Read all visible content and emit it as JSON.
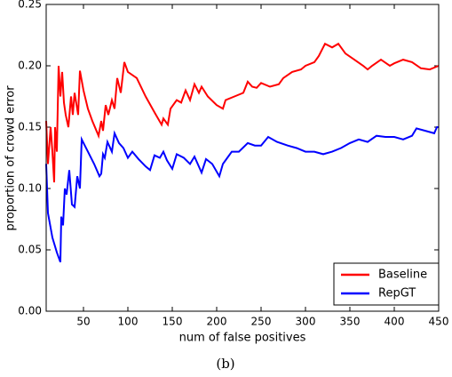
{
  "chart_data": {
    "type": "line",
    "title": "(b)",
    "xlabel": "num of false positives",
    "ylabel": "proportion of crowd error",
    "xlim": [
      8,
      450
    ],
    "ylim": [
      0,
      0.25
    ],
    "xticks": [
      50,
      100,
      150,
      200,
      250,
      300,
      350,
      400,
      450
    ],
    "yticks": [
      {
        "value": 0,
        "label": "0.00"
      },
      0.05,
      {
        "value": 0.1,
        "label": "0.10"
      },
      0.15,
      {
        "value": 0.2,
        "label": "0.20"
      },
      0.25
    ],
    "legend": "lower right",
    "series": [
      {
        "name": "Baseline",
        "color": "#ff0000",
        "x": [
          8,
          10,
          13,
          15,
          17,
          18,
          20,
          22,
          24,
          26,
          28,
          30,
          33,
          36,
          38,
          40,
          44,
          46,
          50,
          55,
          60,
          67,
          70,
          72,
          75,
          78,
          82,
          85,
          88,
          92,
          96,
          100,
          110,
          120,
          130,
          138,
          140,
          145,
          148,
          155,
          160,
          165,
          170,
          175,
          180,
          183,
          190,
          200,
          207,
          210,
          220,
          230,
          235,
          240,
          245,
          250,
          260,
          270,
          275,
          285,
          295,
          300,
          310,
          315,
          322,
          330,
          337,
          345,
          355,
          365,
          370,
          375,
          385,
          395,
          400,
          410,
          420,
          430,
          440,
          450
        ],
        "values": [
          0.155,
          0.12,
          0.15,
          0.13,
          0.105,
          0.15,
          0.13,
          0.2,
          0.175,
          0.195,
          0.17,
          0.16,
          0.15,
          0.175,
          0.16,
          0.178,
          0.16,
          0.196,
          0.18,
          0.165,
          0.155,
          0.143,
          0.155,
          0.147,
          0.168,
          0.16,
          0.172,
          0.165,
          0.19,
          0.178,
          0.203,
          0.195,
          0.19,
          0.175,
          0.162,
          0.152,
          0.157,
          0.152,
          0.165,
          0.172,
          0.17,
          0.18,
          0.172,
          0.185,
          0.178,
          0.183,
          0.175,
          0.168,
          0.165,
          0.172,
          0.175,
          0.178,
          0.187,
          0.183,
          0.182,
          0.186,
          0.183,
          0.185,
          0.19,
          0.195,
          0.197,
          0.2,
          0.203,
          0.208,
          0.218,
          0.215,
          0.218,
          0.21,
          0.205,
          0.2,
          0.197,
          0.2,
          0.205,
          0.2,
          0.202,
          0.205,
          0.203,
          0.198,
          0.197,
          0.2
        ]
      },
      {
        "name": "RepGT",
        "color": "#0000ff",
        "x": [
          8,
          10,
          15,
          20,
          24,
          25,
          27,
          29,
          31,
          34,
          37,
          40,
          43,
          46,
          48,
          55,
          62,
          68,
          70,
          72,
          74,
          77,
          82,
          85,
          90,
          95,
          100,
          105,
          112,
          120,
          125,
          130,
          136,
          140,
          144,
          150,
          155,
          163,
          170,
          175,
          183,
          188,
          195,
          203,
          207,
          212,
          217,
          225,
          235,
          243,
          250,
          258,
          268,
          280,
          290,
          300,
          310,
          320,
          330,
          340,
          350,
          360,
          370,
          380,
          390,
          400,
          410,
          420,
          425,
          435,
          445,
          448,
          450
        ],
        "values": [
          0.12,
          0.08,
          0.06,
          0.048,
          0.04,
          0.077,
          0.07,
          0.1,
          0.095,
          0.115,
          0.087,
          0.085,
          0.11,
          0.1,
          0.14,
          0.13,
          0.12,
          0.11,
          0.112,
          0.128,
          0.125,
          0.138,
          0.13,
          0.145,
          0.137,
          0.133,
          0.125,
          0.13,
          0.124,
          0.118,
          0.115,
          0.127,
          0.125,
          0.13,
          0.123,
          0.116,
          0.128,
          0.125,
          0.12,
          0.126,
          0.113,
          0.124,
          0.12,
          0.11,
          0.12,
          0.125,
          0.13,
          0.13,
          0.137,
          0.135,
          0.135,
          0.142,
          0.138,
          0.135,
          0.133,
          0.13,
          0.13,
          0.128,
          0.13,
          0.133,
          0.137,
          0.14,
          0.138,
          0.143,
          0.142,
          0.142,
          0.14,
          0.143,
          0.149,
          0.147,
          0.145,
          0.15,
          0.15
        ]
      }
    ]
  }
}
